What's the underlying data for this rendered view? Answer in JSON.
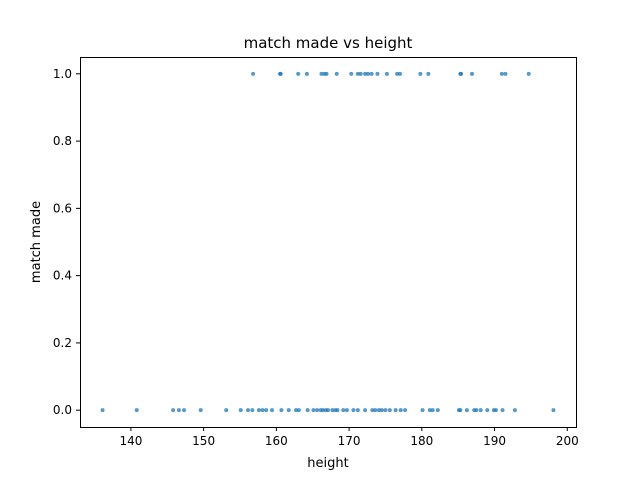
{
  "chart_data": {
    "type": "scatter",
    "title": "match made vs height",
    "xlabel": "height",
    "ylabel": "match made",
    "xlim": [
      133.0,
      201.2
    ],
    "ylim": [
      -0.05,
      1.05
    ],
    "xticks": [
      140,
      150,
      160,
      170,
      180,
      190,
      200
    ],
    "yticks": [
      0.0,
      0.2,
      0.4,
      0.6,
      0.8,
      1.0
    ],
    "xtick_labels": [
      "140",
      "150",
      "160",
      "170",
      "180",
      "190",
      "200"
    ],
    "ytick_labels": [
      "0.0",
      "0.2",
      "0.4",
      "0.6",
      "0.8",
      "1.0"
    ],
    "grid": false,
    "point_color": "#1f77b4",
    "series": [
      {
        "x": [
          156.8,
          160.5,
          160.6,
          163.0,
          164.2,
          166.2,
          166.6,
          166.9,
          168.3,
          170.3,
          171.2,
          171.6,
          172.2,
          172.6,
          173.1,
          173.9,
          175.2,
          176.6,
          177.0,
          179.8,
          180.9,
          185.3,
          185.4,
          186.9,
          191.0,
          191.5,
          194.7
        ],
        "y": [
          1,
          1,
          1,
          1,
          1,
          1,
          1,
          1,
          1,
          1,
          1,
          1,
          1,
          1,
          1,
          1,
          1,
          1,
          1,
          1,
          1,
          1,
          1,
          1,
          1,
          1,
          1
        ]
      },
      {
        "x": [
          136.1,
          140.8,
          145.8,
          146.6,
          147.3,
          149.6,
          153.1,
          155.1,
          156.1,
          156.7,
          157.6,
          158.1,
          158.6,
          159.4,
          160.7,
          161.7,
          162.7,
          163.1,
          164.3,
          165.1,
          165.6,
          166.1,
          166.4,
          166.8,
          167.1,
          167.7,
          168.1,
          168.4,
          169.2,
          169.7,
          170.6,
          171.2,
          172.2,
          173.2,
          173.6,
          174.1,
          174.5,
          175.0,
          175.6,
          176.4,
          177.1,
          177.7,
          180.1,
          181.1,
          181.5,
          182.2,
          185.1,
          185.3,
          186.2,
          187.2,
          187.5,
          188.1,
          189.0,
          189.9,
          190.2,
          191.1,
          192.8,
          198.1
        ],
        "y": [
          0,
          0,
          0,
          0,
          0,
          0,
          0,
          0,
          0,
          0,
          0,
          0,
          0,
          0,
          0,
          0,
          0,
          0,
          0,
          0,
          0,
          0,
          0,
          0,
          0,
          0,
          0,
          0,
          0,
          0,
          0,
          0,
          0,
          0,
          0,
          0,
          0,
          0,
          0,
          0,
          0,
          0,
          0,
          0,
          0,
          0,
          0,
          0,
          0,
          0,
          0,
          0,
          0,
          0,
          0,
          0,
          0,
          0
        ]
      }
    ]
  }
}
